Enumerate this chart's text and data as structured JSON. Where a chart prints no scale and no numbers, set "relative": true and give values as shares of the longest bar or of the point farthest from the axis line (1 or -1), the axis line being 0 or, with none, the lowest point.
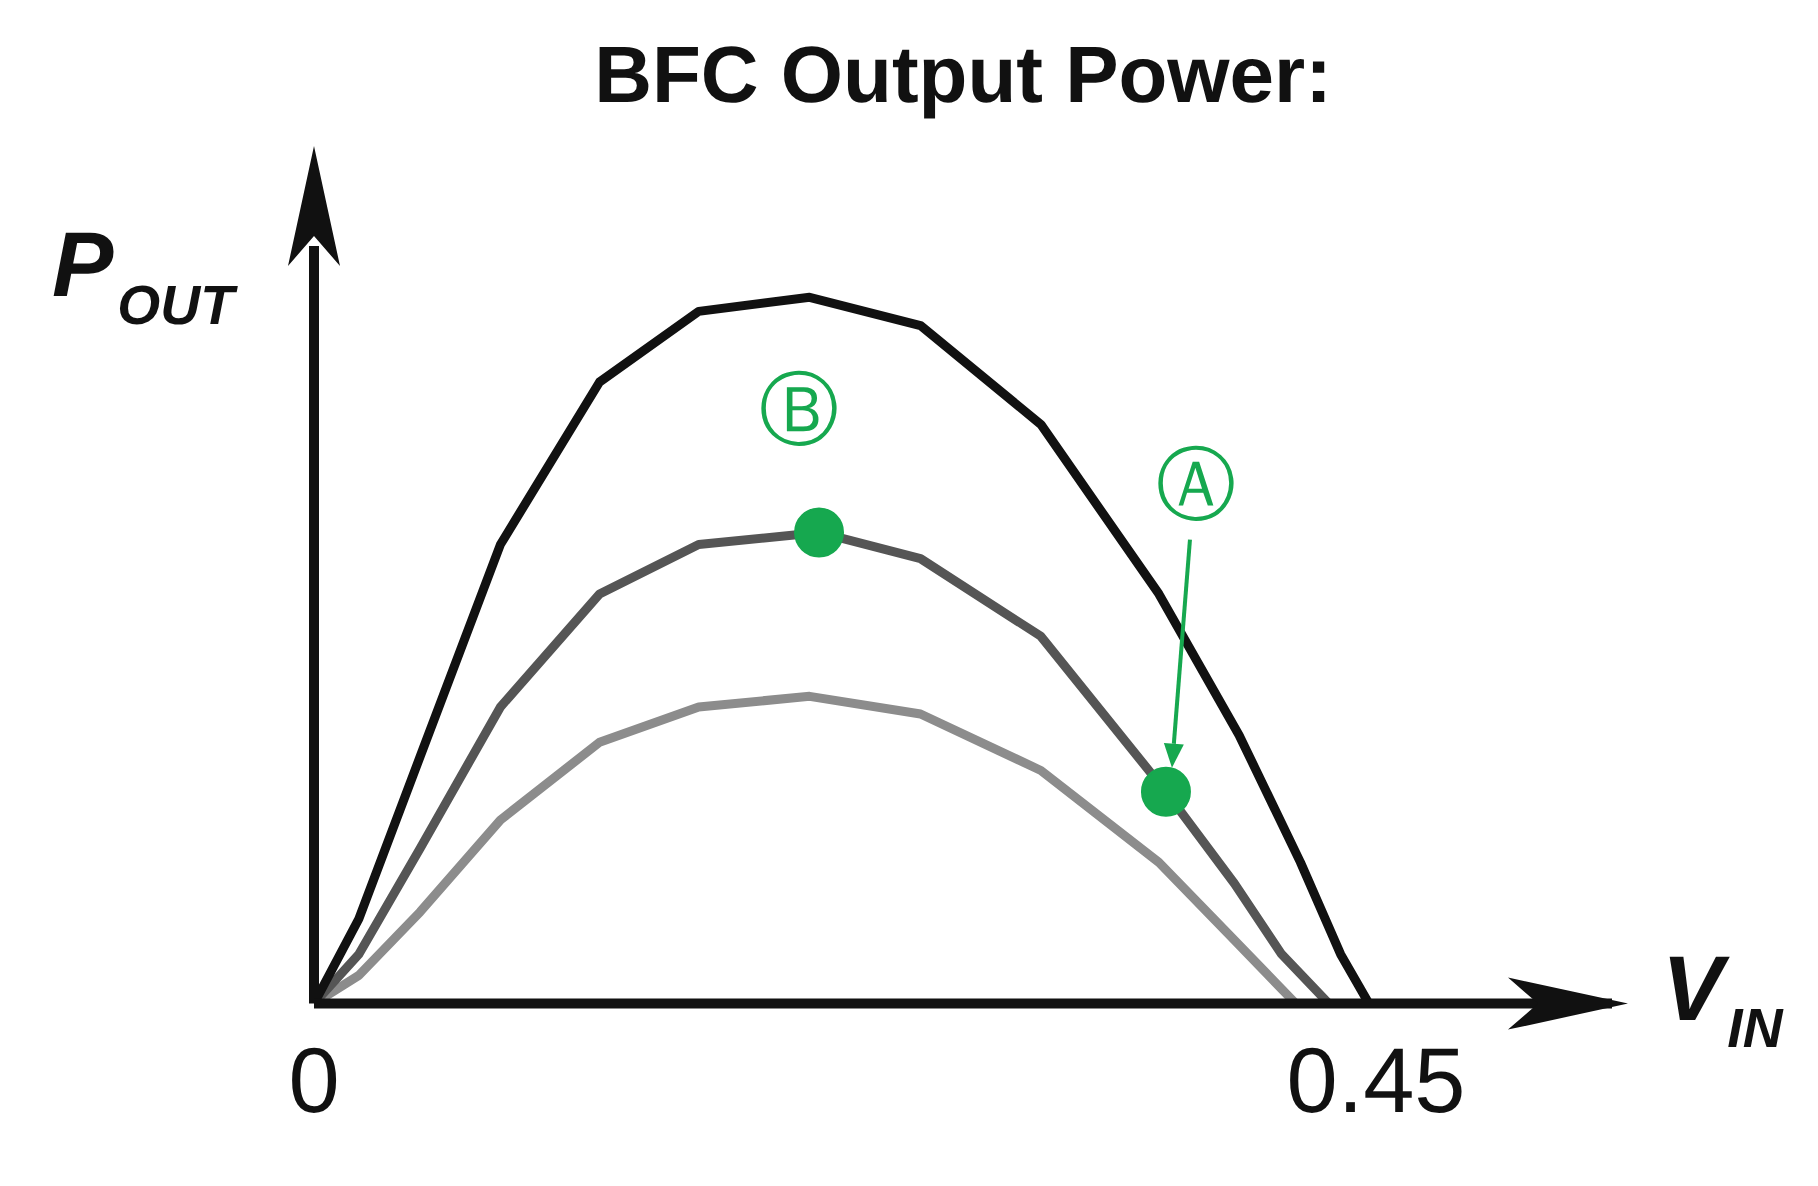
{
  "chart_data": {
    "type": "line",
    "title": "BFC Output Power:",
    "xlabel": "V$_{IN}$",
    "ylabel": "P$_{OUT}$",
    "relative": true,
    "xlim": [
      0,
      0.55
    ],
    "xticks": [
      0,
      0.45
    ],
    "grid": false,
    "legend": false,
    "series": [
      {
        "color": "#111111",
        "x": [
          0,
          0.019,
          0.045,
          0.079,
          0.121,
          0.163,
          0.21,
          0.257,
          0.308,
          0.358,
          0.392,
          0.418,
          0.435,
          0.447,
          0.5
        ],
        "values": [
          0,
          0.12,
          0.35,
          0.65,
          0.88,
          0.98,
          1,
          0.96,
          0.82,
          0.58,
          0.38,
          0.2,
          0.07,
          0,
          0
        ]
      },
      {
        "color": "#555555",
        "x": [
          0,
          0.019,
          0.045,
          0.079,
          0.121,
          0.163,
          0.214,
          0.257,
          0.308,
          0.361,
          0.39,
          0.41,
          0.43,
          0.5
        ],
        "values": [
          0,
          0.07,
          0.22,
          0.42,
          0.58,
          0.65,
          0.667,
          0.63,
          0.52,
          0.3,
          0.17,
          0.07,
          0,
          0
        ]
      },
      {
        "color": "#8c8c8c",
        "x": [
          0,
          0.019,
          0.045,
          0.079,
          0.121,
          0.163,
          0.21,
          0.257,
          0.308,
          0.358,
          0.39,
          0.416,
          0.5
        ],
        "values": [
          0,
          0.04,
          0.13,
          0.26,
          0.37,
          0.42,
          0.435,
          0.41,
          0.33,
          0.2,
          0.09,
          0,
          0
        ]
      },
      {
        "type": "scatter",
        "marker": "circle",
        "color": "#16a84f",
        "x": [
          0.214,
          0.361
        ],
        "values": [
          0.667,
          0.3
        ]
      }
    ],
    "annotations": [
      {
        "text": "Ⓑ",
        "x": 0.214,
        "y": 0.667
      },
      "Ⓐ"
    ]
  }
}
